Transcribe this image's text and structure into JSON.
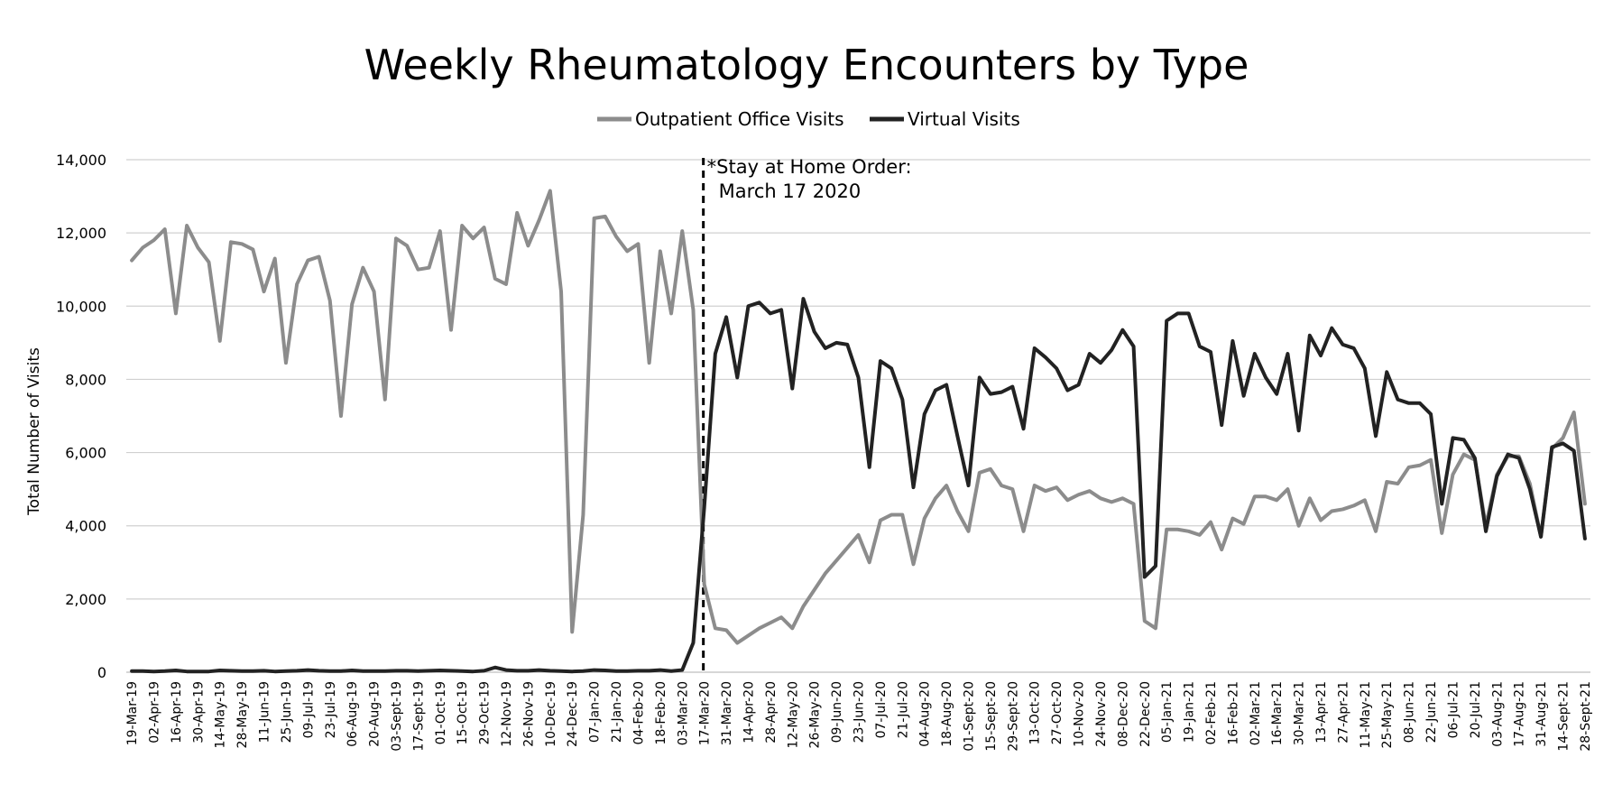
{
  "chart_data": {
    "type": "line",
    "title": "Weekly Rheumatology Encounters by Type",
    "ylabel": "Total Number of Visits",
    "xlabel": "",
    "ylim": [
      0,
      14000
    ],
    "yticks": [
      "0",
      "2,000",
      "4,000",
      "6,000",
      "8,000",
      "10,000",
      "12,000",
      "14,000"
    ],
    "grid": true,
    "legend_position": "top-center",
    "x_count": 133,
    "tick_every": 2,
    "tick_labels": [
      "19-Mar-19",
      "02-Apr-19",
      "16-Apr-19",
      "30-Apr-19",
      "14-May-19",
      "28-May-19",
      "11-Jun-19",
      "25-Jun-19",
      "09-Jul-19",
      "23-Jul-19",
      "06-Aug-19",
      "20-Aug-19",
      "03-Sept-19",
      "17-Sept-19",
      "01-Oct-19",
      "15-Oct-19",
      "29-Oct-19",
      "12-Nov-19",
      "26-Nov-19",
      "10-Dec-19",
      "24-Dec-19",
      "07-Jan-20",
      "21-Jan-20",
      "04-Feb-20",
      "18-Feb-20",
      "03-Mar-20",
      "17-Mar-20",
      "31-Mar-20",
      "14-Apr-20",
      "28-Apr-20",
      "12-May-20",
      "26-May-20",
      "09-Jun-20",
      "23-Jun-20",
      "07-Jul-20",
      "21-Jul-20",
      "04-Aug-20",
      "18-Aug-20",
      "01-Sept-20",
      "15-Sept-20",
      "29-Sept-20",
      "13-Oct-20",
      "27-Oct-20",
      "10-Nov-20",
      "24-Nov-20",
      "08-Dec-20",
      "22-Dec-20",
      "05-Jan-21",
      "19-Jan-21",
      "02-Feb-21",
      "16-Feb-21",
      "02-Mar-21",
      "16-Mar-21",
      "30-Mar-21",
      "13-Apr-21",
      "27-Apr-21",
      "11-May-21",
      "25-May-21",
      "08-Jun-21",
      "22-Jun-21",
      "06-Jul-21",
      "20-Jul-21",
      "03-Aug-21",
      "17-Aug-21",
      "31-Aug-21",
      "14-Sept-21",
      "28-Sept-21"
    ],
    "annotation": {
      "line1": "*Stay at Home Order:",
      "line2": "March 17 2020",
      "x_label": "17-Mar-20",
      "style": "dashed vertical line"
    },
    "series": [
      {
        "name": "Outpatient Office Visits",
        "color": "#8c8c8c",
        "values": [
          11250,
          11600,
          11800,
          12100,
          9800,
          12200,
          11600,
          11200,
          9050,
          11750,
          11700,
          11550,
          10400,
          11300,
          8450,
          10600,
          11250,
          11350,
          10150,
          7000,
          10050,
          11050,
          10400,
          7450,
          11850,
          11650,
          11000,
          11050,
          12050,
          9350,
          12200,
          11850,
          12150,
          10750,
          10600,
          12550,
          11650,
          12350,
          13150,
          10400,
          1100,
          4300,
          12400,
          12450,
          11900,
          11500,
          11700,
          8450,
          11500,
          9800,
          12050,
          9900,
          2400,
          1200,
          1150,
          800,
          1000,
          1200,
          1350,
          1500,
          1200,
          1800,
          2250,
          2700,
          3050,
          3400,
          3750,
          3000,
          4150,
          4300,
          4300,
          2950,
          4200,
          4750,
          5100,
          4400,
          3850,
          5450,
          5550,
          5100,
          5000,
          3850,
          5100,
          4950,
          5050,
          4700,
          4850,
          4950,
          4750,
          4650,
          4750,
          4600,
          1400,
          1200,
          3900,
          3900,
          3850,
          3750,
          4100,
          3350,
          4200,
          4050,
          4800,
          4800,
          4700,
          5000,
          4000,
          4750,
          4150,
          4400,
          4450,
          4550,
          4700,
          3850,
          5200,
          5150,
          5600,
          5650,
          5800,
          3800,
          5400,
          5950,
          5800,
          4000,
          5400,
          5900,
          5900,
          5150,
          3700,
          6100,
          6400,
          7100,
          4600
        ]
      },
      {
        "name": "Virtual Visits",
        "color": "#222222",
        "values": [
          30,
          30,
          20,
          30,
          50,
          20,
          20,
          20,
          50,
          40,
          30,
          30,
          40,
          20,
          30,
          40,
          60,
          40,
          30,
          30,
          50,
          30,
          30,
          30,
          40,
          40,
          30,
          40,
          50,
          40,
          30,
          20,
          40,
          130,
          60,
          40,
          40,
          60,
          40,
          30,
          20,
          30,
          60,
          50,
          30,
          30,
          40,
          40,
          60,
          30,
          60,
          800,
          4500,
          8700,
          9700,
          8050,
          10000,
          10100,
          9800,
          9900,
          7750,
          10200,
          9300,
          8850,
          9000,
          8950,
          8050,
          5600,
          8500,
          8300,
          7450,
          5050,
          7050,
          7700,
          7850,
          6450,
          5100,
          8050,
          7600,
          7650,
          7800,
          6650,
          8850,
          8600,
          8300,
          7700,
          7850,
          8700,
          8450,
          8800,
          9350,
          8900,
          2600,
          2900,
          9600,
          9800,
          9800,
          8900,
          8750,
          6750,
          9050,
          7550,
          8700,
          8050,
          7600,
          8700,
          6600,
          9200,
          8650,
          9400,
          8950,
          8850,
          8300,
          6450,
          8200,
          7450,
          7350,
          7350,
          7050,
          4600,
          6400,
          6350,
          5850,
          3850,
          5350,
          5950,
          5850,
          5000,
          3700,
          6150,
          6250,
          6050,
          3650
        ]
      }
    ]
  }
}
